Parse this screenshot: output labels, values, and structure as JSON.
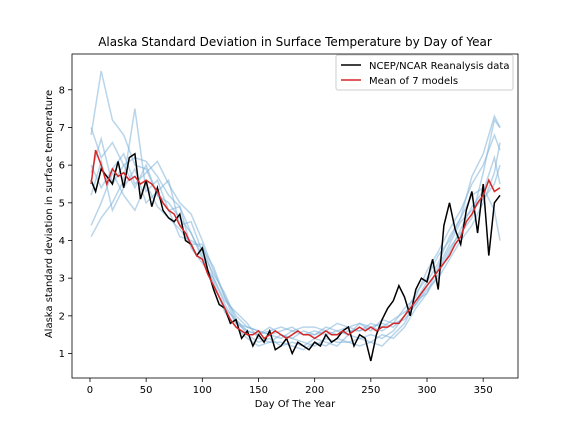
{
  "chart_data": {
    "type": "line",
    "title": "Alaska Standard Deviation in Surface Temperature by Day of Year",
    "xlabel": "Day Of The Year",
    "ylabel": "Alaska standard deviation in surface temperature",
    "xlim": [
      -16,
      381
    ],
    "ylim": [
      0.35,
      8.95
    ],
    "xticks": [
      0,
      50,
      100,
      150,
      200,
      250,
      300,
      350
    ],
    "yticks": [
      1,
      2,
      3,
      4,
      5,
      6,
      7,
      8
    ],
    "grid": false,
    "legend_position": "top-right",
    "series": [
      {
        "name": "NCEP/NCAR Reanalysis data",
        "color": "#000000",
        "x": [
          1,
          5,
          10,
          15,
          20,
          25,
          30,
          35,
          40,
          45,
          50,
          55,
          60,
          65,
          70,
          75,
          80,
          85,
          90,
          95,
          100,
          105,
          110,
          115,
          120,
          125,
          130,
          135,
          140,
          145,
          150,
          155,
          160,
          165,
          170,
          175,
          180,
          185,
          190,
          195,
          200,
          205,
          210,
          215,
          220,
          225,
          230,
          235,
          240,
          245,
          250,
          255,
          260,
          265,
          270,
          275,
          280,
          285,
          290,
          295,
          300,
          305,
          310,
          315,
          320,
          325,
          330,
          335,
          340,
          345,
          350,
          355,
          360,
          365
        ],
        "y": [
          5.6,
          5.3,
          5.9,
          5.7,
          5.5,
          6.1,
          5.4,
          6.2,
          6.3,
          5.1,
          5.6,
          4.9,
          5.4,
          4.8,
          4.6,
          4.5,
          4.7,
          4.0,
          3.9,
          3.6,
          3.8,
          3.2,
          2.7,
          2.3,
          2.2,
          1.8,
          1.9,
          1.4,
          1.6,
          1.2,
          1.5,
          1.3,
          1.6,
          1.1,
          1.2,
          1.4,
          1.0,
          1.3,
          1.2,
          1.1,
          1.3,
          1.2,
          1.5,
          1.3,
          1.4,
          1.6,
          1.7,
          1.2,
          1.5,
          1.4,
          0.8,
          1.5,
          1.9,
          2.2,
          2.4,
          2.8,
          2.5,
          2.0,
          2.7,
          3.0,
          2.9,
          3.5,
          2.7,
          4.4,
          5.0,
          4.3,
          3.9,
          4.8,
          5.3,
          4.2,
          5.5,
          3.6,
          5.0,
          5.2
        ]
      },
      {
        "name": "Mean of 7 models",
        "color": "#d62728",
        "x": [
          1,
          5,
          10,
          15,
          20,
          25,
          30,
          35,
          40,
          45,
          50,
          55,
          60,
          65,
          70,
          75,
          80,
          85,
          90,
          95,
          100,
          105,
          110,
          115,
          120,
          125,
          130,
          135,
          140,
          145,
          150,
          155,
          160,
          165,
          170,
          175,
          180,
          185,
          190,
          195,
          200,
          205,
          210,
          215,
          220,
          225,
          230,
          235,
          240,
          245,
          250,
          255,
          260,
          265,
          270,
          275,
          280,
          285,
          290,
          295,
          300,
          305,
          310,
          315,
          320,
          325,
          330,
          335,
          340,
          345,
          350,
          355,
          360,
          365
        ],
        "y": [
          5.5,
          6.4,
          6.0,
          5.5,
          5.9,
          5.7,
          5.8,
          5.6,
          5.7,
          5.5,
          5.6,
          5.5,
          5.3,
          5.0,
          4.8,
          4.7,
          4.4,
          4.2,
          3.9,
          3.6,
          3.5,
          3.1,
          2.8,
          2.5,
          2.2,
          1.9,
          1.7,
          1.6,
          1.5,
          1.5,
          1.6,
          1.4,
          1.5,
          1.6,
          1.5,
          1.4,
          1.5,
          1.6,
          1.5,
          1.5,
          1.4,
          1.5,
          1.6,
          1.5,
          1.5,
          1.6,
          1.5,
          1.6,
          1.7,
          1.6,
          1.7,
          1.6,
          1.7,
          1.7,
          1.8,
          1.8,
          2.0,
          2.2,
          2.4,
          2.6,
          2.8,
          3.0,
          3.2,
          3.4,
          3.6,
          3.9,
          4.1,
          4.5,
          4.7,
          5.0,
          5.2,
          5.6,
          5.3,
          5.4
        ]
      }
    ],
    "model_series": [
      {
        "color": "#7fb2d8",
        "x": [
          1,
          10,
          20,
          30,
          40,
          50,
          60,
          70,
          80,
          90,
          100,
          110,
          120,
          130,
          140,
          150,
          160,
          170,
          180,
          190,
          200,
          210,
          220,
          230,
          240,
          250,
          260,
          270,
          280,
          290,
          300,
          310,
          320,
          330,
          340,
          350,
          360,
          365
        ],
        "y": [
          6.8,
          8.5,
          7.2,
          6.8,
          6.0,
          5.9,
          5.2,
          5.0,
          4.6,
          4.2,
          3.6,
          2.8,
          2.2,
          1.9,
          1.6,
          1.5,
          1.7,
          1.5,
          1.4,
          1.6,
          1.5,
          1.7,
          1.6,
          1.5,
          1.8,
          1.7,
          1.6,
          1.8,
          1.9,
          2.3,
          2.8,
          3.2,
          3.8,
          4.2,
          4.6,
          5.8,
          7.2,
          7.0
        ]
      },
      {
        "color": "#7fb2d8",
        "x": [
          1,
          10,
          20,
          30,
          40,
          50,
          60,
          70,
          80,
          90,
          100,
          110,
          120,
          130,
          140,
          150,
          160,
          170,
          180,
          190,
          200,
          210,
          220,
          230,
          240,
          250,
          260,
          270,
          280,
          290,
          300,
          310,
          320,
          330,
          340,
          350,
          360,
          365
        ],
        "y": [
          4.1,
          4.6,
          5.0,
          5.6,
          7.5,
          5.3,
          5.6,
          4.8,
          4.9,
          3.8,
          3.4,
          3.0,
          2.4,
          2.1,
          1.8,
          1.4,
          1.3,
          1.5,
          1.4,
          1.3,
          1.2,
          1.4,
          1.3,
          1.3,
          1.4,
          1.5,
          1.4,
          1.6,
          2.0,
          2.6,
          3.0,
          3.6,
          4.0,
          4.6,
          5.2,
          5.4,
          4.8,
          4.0
        ]
      },
      {
        "color": "#7fb2d8",
        "x": [
          1,
          10,
          20,
          30,
          40,
          50,
          60,
          70,
          80,
          90,
          100,
          110,
          120,
          130,
          140,
          150,
          160,
          170,
          180,
          190,
          200,
          210,
          220,
          230,
          240,
          250,
          260,
          270,
          280,
          290,
          300,
          310,
          320,
          330,
          340,
          350,
          360,
          365
        ],
        "y": [
          6.0,
          5.4,
          5.9,
          6.3,
          5.5,
          5.8,
          6.1,
          5.5,
          5.0,
          4.7,
          4.0,
          3.2,
          2.5,
          2.0,
          1.7,
          1.6,
          1.5,
          1.6,
          1.7,
          1.5,
          1.6,
          1.5,
          1.6,
          1.7,
          1.6,
          1.8,
          1.7,
          1.9,
          2.1,
          2.3,
          2.7,
          3.0,
          3.5,
          4.0,
          4.4,
          5.0,
          5.8,
          6.6
        ]
      },
      {
        "color": "#7fb2d8",
        "x": [
          1,
          10,
          20,
          30,
          40,
          50,
          60,
          70,
          80,
          90,
          100,
          110,
          120,
          130,
          140,
          150,
          160,
          170,
          180,
          190,
          200,
          210,
          220,
          230,
          240,
          250,
          260,
          270,
          280,
          290,
          300,
          310,
          320,
          330,
          340,
          350,
          360,
          365
        ],
        "y": [
          5.2,
          6.1,
          4.8,
          5.4,
          5.9,
          5.0,
          5.3,
          5.6,
          4.4,
          4.5,
          3.7,
          3.1,
          2.6,
          1.9,
          1.5,
          1.3,
          1.4,
          1.2,
          1.3,
          1.2,
          1.4,
          1.3,
          1.2,
          1.5,
          1.4,
          1.3,
          1.5,
          1.4,
          1.7,
          2.2,
          2.6,
          3.3,
          3.9,
          4.5,
          4.8,
          5.1,
          5.5,
          6.0
        ]
      },
      {
        "color": "#7fb2d8",
        "x": [
          1,
          10,
          20,
          30,
          40,
          50,
          60,
          70,
          80,
          90,
          100,
          110,
          120,
          130,
          140,
          150,
          160,
          170,
          180,
          190,
          200,
          210,
          220,
          230,
          240,
          250,
          260,
          270,
          280,
          290,
          300,
          310,
          320,
          330,
          340,
          350,
          360,
          365
        ],
        "y": [
          4.4,
          5.0,
          5.8,
          5.2,
          4.8,
          5.5,
          4.9,
          4.6,
          4.3,
          3.9,
          3.9,
          3.0,
          2.3,
          1.8,
          1.6,
          1.5,
          1.6,
          1.7,
          1.6,
          1.7,
          1.7,
          1.6,
          1.8,
          1.7,
          1.8,
          1.6,
          1.9,
          1.8,
          2.2,
          2.5,
          3.2,
          3.7,
          4.3,
          4.8,
          5.5,
          6.0,
          6.8,
          6.4
        ]
      },
      {
        "color": "#7fb2d8",
        "x": [
          1,
          10,
          20,
          30,
          40,
          50,
          60,
          70,
          80,
          90,
          100,
          110,
          120,
          130,
          140,
          150,
          160,
          170,
          180,
          190,
          200,
          210,
          220,
          230,
          240,
          250,
          260,
          270,
          280,
          290,
          300,
          310,
          320,
          330,
          340,
          350,
          360,
          365
        ],
        "y": [
          7.0,
          6.2,
          6.6,
          6.0,
          6.2,
          6.1,
          5.7,
          5.2,
          4.9,
          4.2,
          3.5,
          2.9,
          2.1,
          1.7,
          1.4,
          1.2,
          1.3,
          1.3,
          1.2,
          1.1,
          1.3,
          1.2,
          1.4,
          1.3,
          1.2,
          1.3,
          1.2,
          1.5,
          1.8,
          2.4,
          2.9,
          3.4,
          4.1,
          4.6,
          5.7,
          6.3,
          7.3,
          7.0
        ]
      },
      {
        "color": "#7fb2d8",
        "x": [
          1,
          10,
          20,
          30,
          40,
          50,
          60,
          70,
          80,
          90,
          100,
          110,
          120,
          130,
          140,
          150,
          160,
          170,
          180,
          190,
          200,
          210,
          220,
          230,
          240,
          250,
          260,
          270,
          280,
          290,
          300,
          310,
          320,
          330,
          340,
          350,
          360,
          365
        ],
        "y": [
          5.8,
          6.7,
          5.5,
          6.0,
          5.4,
          6.0,
          5.2,
          4.8,
          4.1,
          4.0,
          3.8,
          3.3,
          2.5,
          1.8,
          1.7,
          1.6,
          1.5,
          1.4,
          1.6,
          1.5,
          1.5,
          1.6,
          1.5,
          1.6,
          1.6,
          1.7,
          1.8,
          1.7,
          2.0,
          2.4,
          2.6,
          3.1,
          3.7,
          4.3,
          4.9,
          5.3,
          6.2,
          5.5
        ]
      }
    ]
  }
}
